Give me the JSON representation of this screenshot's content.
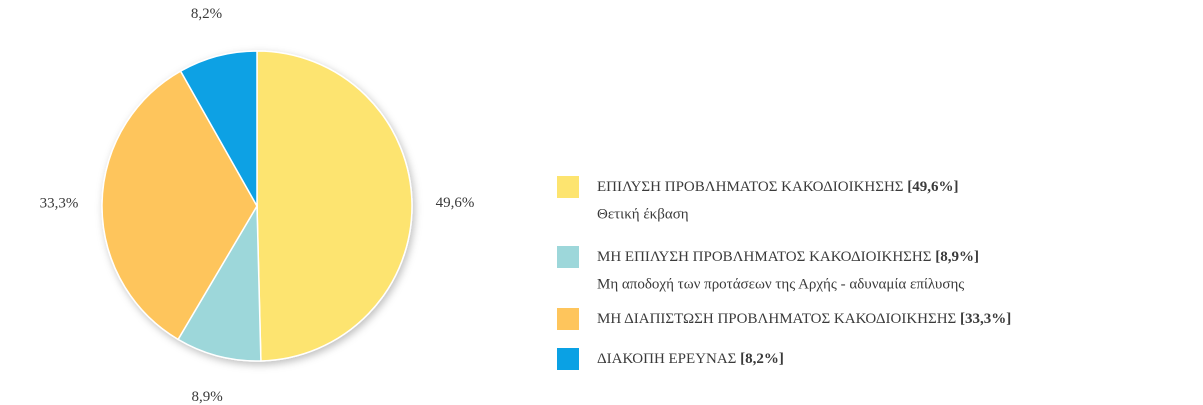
{
  "chart_data": {
    "type": "pie",
    "categories": [
      "ΕΠΙΛΥΣΗ ΠΡΟΒΛΗΜΑΤΟΣ ΚΑΚΟΔΙΟΙΚΗΣΗΣ",
      "ΜΗ ΕΠΙΛΥΣΗ ΠΡΟΒΛΗΜΑΤΟΣ ΚΑΚΟΔΙΟΙΚΗΣΗΣ",
      "ΜΗ ΔΙΑΠΙΣΤΩΣΗ ΠΡΟΒΛΗΜΑΤΟΣ ΚΑΚΟΔΙΟΙΚΗΣΗΣ",
      "ΔΙΑΚΟΠΗ ΕΡΕΥΝΑΣ"
    ],
    "values": [
      49.6,
      8.9,
      33.3,
      8.2
    ],
    "value_labels": [
      "49,6%",
      "8,9%",
      "33,3%",
      "8,2%"
    ],
    "legend_values": [
      "[49,6%]",
      "[8,9%]",
      "[33,3%]",
      "[8,2%]"
    ],
    "descriptions": [
      "Θετική έκβαση",
      "Μη αποδοχή των προτάσεων της Αρχής - αδυναμία επίλυσης",
      null,
      null
    ],
    "colors": [
      "#fde46f",
      "#9dd7da",
      "#fec55c",
      "#0aa1e4"
    ],
    "legend": "right"
  }
}
